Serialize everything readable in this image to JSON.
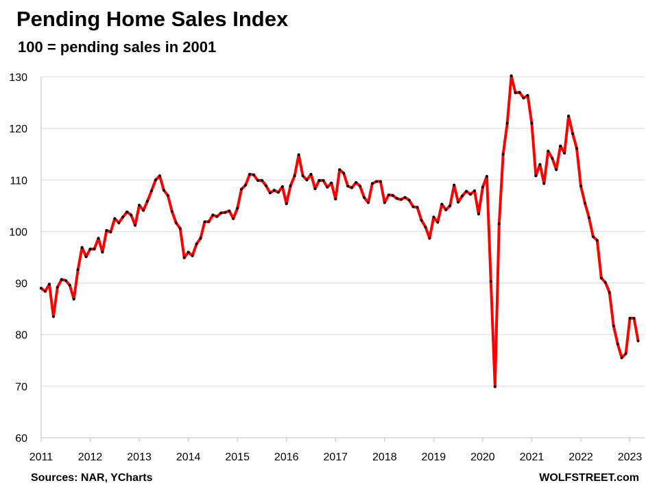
{
  "chart_data": {
    "type": "line",
    "title": "Pending Home Sales Index",
    "subtitle": "100 = pending sales in 2001",
    "source": "Sources: NAR, YCharts",
    "credit": "WOLFSTREET.com",
    "ylim": [
      60,
      130
    ],
    "yticks": [
      60,
      70,
      80,
      90,
      100,
      110,
      120,
      130
    ],
    "xlim": [
      2011,
      2023.3
    ],
    "xticks": [
      "2011",
      "2012",
      "2013",
      "2014",
      "2015",
      "2016",
      "2017",
      "2018",
      "2019",
      "2020",
      "2021",
      "2022",
      "2023"
    ],
    "grid": "horizontal",
    "line_color": "#ff0000",
    "marker_color": "#000000",
    "series": [
      {
        "x": [
          "2011-01",
          "2011-02",
          "2011-03",
          "2011-04",
          "2011-05",
          "2011-06",
          "2011-07",
          "2011-08",
          "2011-09",
          "2011-10",
          "2011-11",
          "2011-12",
          "2012-01",
          "2012-02",
          "2012-03",
          "2012-04",
          "2012-05",
          "2012-06",
          "2012-07",
          "2012-08",
          "2012-09",
          "2012-10",
          "2012-11",
          "2012-12",
          "2013-01",
          "2013-02",
          "2013-03",
          "2013-04",
          "2013-05",
          "2013-06",
          "2013-07",
          "2013-08",
          "2013-09",
          "2013-10",
          "2013-11",
          "2013-12",
          "2014-01",
          "2014-02",
          "2014-03",
          "2014-04",
          "2014-05",
          "2014-06",
          "2014-07",
          "2014-08",
          "2014-09",
          "2014-10",
          "2014-11",
          "2014-12",
          "2015-01",
          "2015-02",
          "2015-03",
          "2015-04",
          "2015-05",
          "2015-06",
          "2015-07",
          "2015-08",
          "2015-09",
          "2015-10",
          "2015-11",
          "2015-12",
          "2016-01",
          "2016-02",
          "2016-03",
          "2016-04",
          "2016-05",
          "2016-06",
          "2016-07",
          "2016-08",
          "2016-09",
          "2016-10",
          "2016-11",
          "2016-12",
          "2017-01",
          "2017-02",
          "2017-03",
          "2017-04",
          "2017-05",
          "2017-06",
          "2017-07",
          "2017-08",
          "2017-09",
          "2017-10",
          "2017-11",
          "2017-12",
          "2018-01",
          "2018-02",
          "2018-03",
          "2018-04",
          "2018-05",
          "2018-06",
          "2018-07",
          "2018-08",
          "2018-09",
          "2018-10",
          "2018-11",
          "2018-12",
          "2019-01",
          "2019-02",
          "2019-03",
          "2019-04",
          "2019-05",
          "2019-06",
          "2019-07",
          "2019-08",
          "2019-09",
          "2019-10",
          "2019-11",
          "2019-12",
          "2020-01",
          "2020-02",
          "2020-03",
          "2020-04",
          "2020-05",
          "2020-06",
          "2020-07",
          "2020-08",
          "2020-09",
          "2020-10",
          "2020-11",
          "2020-12",
          "2021-01",
          "2021-02",
          "2021-03",
          "2021-04",
          "2021-05",
          "2021-06",
          "2021-07",
          "2021-08",
          "2021-09",
          "2021-10",
          "2021-11",
          "2021-12",
          "2022-01",
          "2022-02",
          "2022-03",
          "2022-04",
          "2022-05",
          "2022-06",
          "2022-07",
          "2022-08",
          "2022-09",
          "2022-10",
          "2022-11",
          "2022-12",
          "2023-01",
          "2023-02",
          "2023-03",
          "2023-04"
        ],
        "values": [
          89.0,
          88.4,
          89.8,
          83.5,
          89.2,
          90.7,
          90.5,
          89.6,
          86.9,
          92.6,
          96.9,
          95.1,
          96.6,
          96.6,
          98.7,
          96.0,
          100.2,
          99.9,
          102.5,
          101.7,
          102.8,
          103.8,
          103.2,
          101.2,
          105.1,
          104.1,
          105.9,
          107.9,
          110.0,
          110.8,
          108.0,
          107.0,
          103.9,
          101.7,
          100.6,
          94.9,
          96.0,
          95.3,
          97.6,
          98.7,
          101.9,
          101.9,
          103.2,
          102.9,
          103.6,
          103.7,
          104.0,
          102.5,
          104.5,
          108.2,
          109.0,
          111.1,
          111.0,
          109.9,
          109.9,
          108.9,
          107.5,
          108.0,
          107.6,
          108.7,
          105.4,
          108.9,
          110.8,
          114.9,
          110.8,
          110.0,
          111.1,
          108.3,
          109.9,
          109.9,
          108.6,
          109.4,
          106.3,
          112.0,
          111.3,
          108.8,
          108.5,
          109.5,
          108.8,
          106.6,
          105.6,
          109.3,
          109.7,
          109.7,
          105.6,
          107.1,
          107.0,
          106.4,
          106.2,
          106.6,
          106.1,
          104.8,
          104.7,
          102.2,
          100.9,
          98.7,
          102.8,
          101.8,
          105.3,
          104.2,
          105.0,
          109.0,
          105.7,
          106.9,
          107.8,
          107.2,
          107.9,
          103.4,
          108.6,
          110.7,
          90.3,
          69.9,
          101.5,
          115.0,
          121.0,
          130.2,
          126.9,
          127.0,
          125.9,
          126.4,
          121.0,
          110.8,
          113.0,
          109.3,
          115.6,
          114.2,
          112.0,
          116.6,
          115.2,
          122.4,
          119.0,
          116.1,
          108.8,
          105.5,
          102.7,
          99.0,
          98.3,
          91.0,
          90.1,
          88.2,
          81.7,
          78.2,
          75.5,
          76.3,
          83.2,
          83.2,
          78.8,
          null
        ]
      }
    ]
  }
}
